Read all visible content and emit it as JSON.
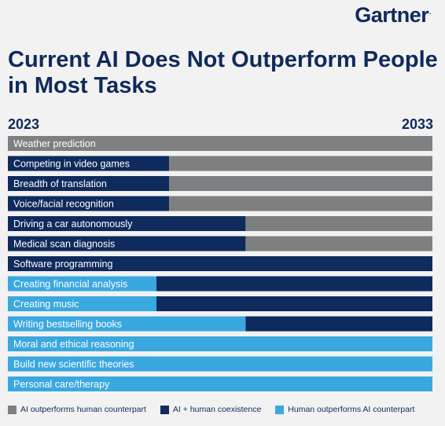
{
  "logo": "Gartner",
  "title": "Current AI Does Not Outperform People in Most Tasks",
  "chart_data": {
    "type": "bar",
    "start_label": "2023",
    "end_label": "2033",
    "xlim": [
      0,
      1
    ],
    "series": [
      {
        "name": "Human outperforms AI counterpart",
        "color": "#3aa8e0"
      },
      {
        "name": "AI + human coexistence",
        "color": "#0f2a5c"
      },
      {
        "name": "AI outperforms human counterpart",
        "color": "#7d7f80"
      }
    ],
    "tasks": [
      {
        "label": "Weather prediction",
        "human_end": 0.0,
        "coexist_end": 0.0
      },
      {
        "label": "Competing in video games",
        "human_end": 0.0,
        "coexist_end": 0.38
      },
      {
        "label": "Breadth of translation",
        "human_end": 0.0,
        "coexist_end": 0.38
      },
      {
        "label": "Voice/facial recognition",
        "human_end": 0.0,
        "coexist_end": 0.38
      },
      {
        "label": "Driving a car autonomously",
        "human_end": 0.0,
        "coexist_end": 0.56
      },
      {
        "label": "Medical scan diagnosis",
        "human_end": 0.0,
        "coexist_end": 0.56
      },
      {
        "label": "Software programming",
        "human_end": 0.0,
        "coexist_end": 1.0
      },
      {
        "label": "Creating financial analysis",
        "human_end": 0.35,
        "coexist_end": 1.0
      },
      {
        "label": "Creating music",
        "human_end": 0.35,
        "coexist_end": 1.0
      },
      {
        "label": "Writing bestselling books",
        "human_end": 0.56,
        "coexist_end": 1.0
      },
      {
        "label": "Moral and ethical reasoning",
        "human_end": 1.0,
        "coexist_end": 1.0
      },
      {
        "label": "Build new scientific theories",
        "human_end": 1.0,
        "coexist_end": 1.0
      },
      {
        "label": "Personal care/therapy",
        "human_end": 1.0,
        "coexist_end": 1.0
      }
    ]
  },
  "legend": [
    {
      "label": "AI outperforms human counterpart",
      "color": "#7d7f80"
    },
    {
      "label": "AI + human coexistence",
      "color": "#0f2a5c"
    },
    {
      "label": "Human outperforms AI counterpart",
      "color": "#3aa8e0"
    }
  ]
}
